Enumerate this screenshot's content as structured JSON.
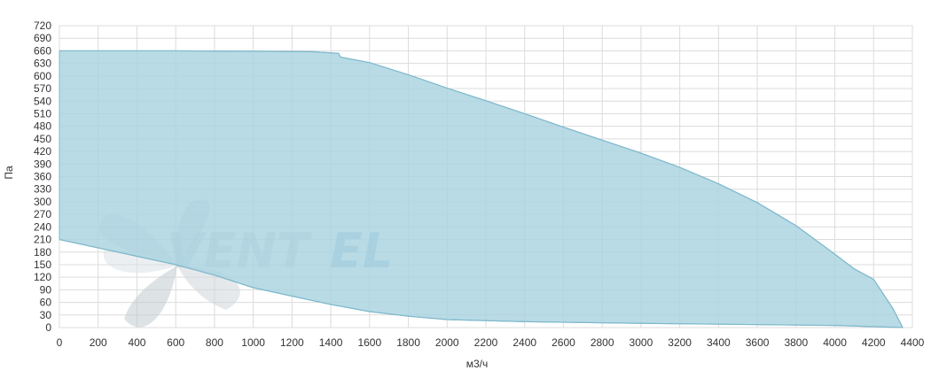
{
  "chart_data": {
    "type": "area",
    "xlabel": "м3/ч",
    "ylabel": "Па",
    "xlim": [
      0,
      4400
    ],
    "ylim": [
      0,
      720
    ],
    "x_ticks": [
      0,
      200,
      400,
      600,
      800,
      1000,
      1200,
      1400,
      1600,
      1800,
      2000,
      2200,
      2400,
      2600,
      2800,
      3000,
      3200,
      3400,
      3600,
      3800,
      4000,
      4200,
      4400
    ],
    "y_ticks": [
      0,
      30,
      60,
      90,
      120,
      150,
      180,
      210,
      240,
      270,
      300,
      330,
      360,
      390,
      420,
      450,
      480,
      510,
      540,
      570,
      600,
      630,
      660,
      690,
      720
    ],
    "grid": true,
    "fill_color": "#a9d3e0",
    "line_color": "#7fb9cc",
    "watermark": "VENTEL",
    "upper_boundary": [
      {
        "x": 0,
        "y": 660
      },
      {
        "x": 200,
        "y": 660
      },
      {
        "x": 600,
        "y": 660
      },
      {
        "x": 1000,
        "y": 659
      },
      {
        "x": 1300,
        "y": 658
      },
      {
        "x": 1440,
        "y": 654
      },
      {
        "x": 1450,
        "y": 645
      },
      {
        "x": 1600,
        "y": 632
      },
      {
        "x": 1800,
        "y": 603
      },
      {
        "x": 2000,
        "y": 571
      },
      {
        "x": 2200,
        "y": 541
      },
      {
        "x": 2400,
        "y": 510
      },
      {
        "x": 2600,
        "y": 478
      },
      {
        "x": 2800,
        "y": 447
      },
      {
        "x": 3000,
        "y": 416
      },
      {
        "x": 3200,
        "y": 382
      },
      {
        "x": 3400,
        "y": 343
      },
      {
        "x": 3600,
        "y": 298
      },
      {
        "x": 3800,
        "y": 243
      },
      {
        "x": 4000,
        "y": 175
      },
      {
        "x": 4100,
        "y": 140
      },
      {
        "x": 4200,
        "y": 115
      },
      {
        "x": 4250,
        "y": 80
      },
      {
        "x": 4300,
        "y": 45
      },
      {
        "x": 4350,
        "y": 0
      }
    ],
    "lower_boundary": [
      {
        "x": 0,
        "y": 210
      },
      {
        "x": 200,
        "y": 190
      },
      {
        "x": 400,
        "y": 170
      },
      {
        "x": 600,
        "y": 150
      },
      {
        "x": 800,
        "y": 125
      },
      {
        "x": 1000,
        "y": 95
      },
      {
        "x": 1200,
        "y": 75
      },
      {
        "x": 1400,
        "y": 55
      },
      {
        "x": 1600,
        "y": 38
      },
      {
        "x": 1800,
        "y": 27
      },
      {
        "x": 2000,
        "y": 19
      },
      {
        "x": 2400,
        "y": 14
      },
      {
        "x": 3000,
        "y": 10
      },
      {
        "x": 3600,
        "y": 7
      },
      {
        "x": 4000,
        "y": 5
      },
      {
        "x": 4350,
        "y": 0
      }
    ]
  }
}
